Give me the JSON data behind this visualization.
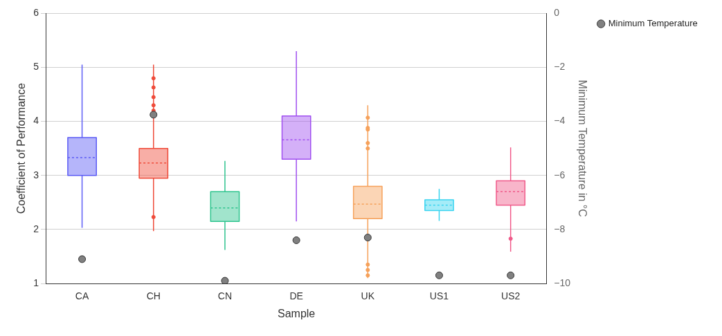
{
  "chart_data": {
    "type": "box",
    "xlabel": "Sample",
    "ylabel": "Coefficient of Performance",
    "y2label": "Minimum Temperature in °C",
    "categories": [
      "CA",
      "CH",
      "CN",
      "DE",
      "UK",
      "US1",
      "US2"
    ],
    "ylim": [
      1,
      6
    ],
    "yticks": [
      1,
      2,
      3,
      4,
      5,
      6
    ],
    "y2lim": [
      -10,
      0
    ],
    "y2ticks": [
      -10,
      -8,
      -6,
      -4,
      -2,
      0
    ],
    "grid": "y",
    "legend": "top right",
    "marker": "circle",
    "series": [
      {
        "colors": [
          "#5b5bf5",
          "#ef4b3a",
          "#2ec48e",
          "#a04ff0",
          "#f6a15a",
          "#38d4f0",
          "#f05a8a"
        ],
        "boxes": [
          {
            "low": 2.03,
            "q1": 3.0,
            "median": 3.33,
            "q3": 3.7,
            "high": 5.05
          },
          {
            "low": 1.97,
            "q1": 2.95,
            "median": 3.23,
            "q3": 3.5,
            "high": 5.05,
            "outliers": [
              4.8,
              4.63,
              4.45,
              4.3,
              4.2,
              2.23
            ]
          },
          {
            "low": 1.62,
            "q1": 2.15,
            "median": 2.4,
            "q3": 2.7,
            "high": 3.27
          },
          {
            "low": 2.15,
            "q1": 3.3,
            "median": 3.66,
            "q3": 4.1,
            "high": 5.3
          },
          {
            "low": 1.1,
            "q1": 2.2,
            "median": 2.47,
            "q3": 2.8,
            "high": 4.3,
            "outliers": [
              4.07,
              3.88,
              3.85,
              3.6,
              3.5,
              1.35,
              1.25,
              1.15
            ]
          },
          {
            "low": 2.16,
            "q1": 2.35,
            "median": 2.45,
            "q3": 2.55,
            "high": 2.75
          },
          {
            "low": 1.59,
            "q1": 2.45,
            "median": 2.7,
            "q3": 2.9,
            "high": 3.52,
            "outliers": [
              1.83
            ]
          }
        ]
      },
      {
        "type": "scatter",
        "name": "Minimum Temperature",
        "axis": "y2",
        "color": "#808080",
        "x": [
          "CA",
          "CH",
          "CN",
          "DE",
          "UK",
          "US1",
          "US2"
        ],
        "values": [
          -9.1,
          -3.75,
          -9.9,
          -8.4,
          -8.3,
          -9.7,
          -9.7
        ]
      }
    ]
  }
}
